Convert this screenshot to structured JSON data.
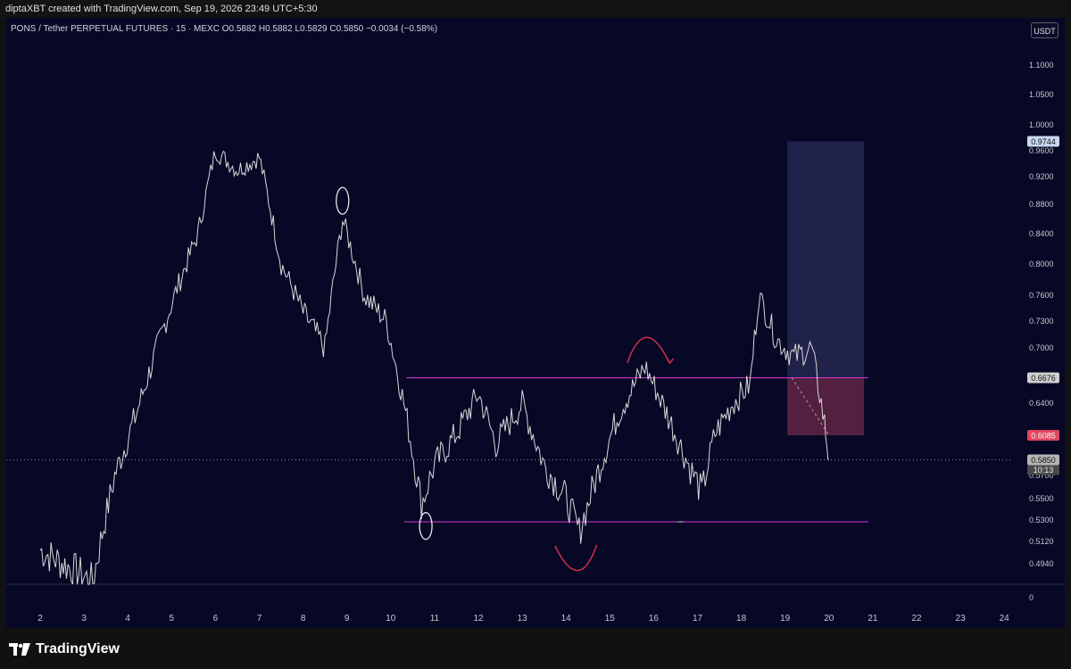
{
  "header": {
    "credit": "diptaXBT created with TradingView.com, Sep 19, 2026 23:49 UTC+5:30"
  },
  "legend": {
    "text": "PONS / Tether PERPETUAL FUTURES · 15 · MEXC  O0.5882  H0.5882  L0.5829  C0.5850  −0.0034 (−0.58%)"
  },
  "currency_button": "USDT",
  "footer": {
    "brand": "TradingView",
    "logo_icon": "tradingview-logo-icon"
  },
  "colors": {
    "background": "#070726",
    "price_line": "#d8d8d8",
    "level_line": "#d63ad6",
    "target_zone": "#2a2c55",
    "stop_zone": "#6e2a48",
    "annotation_red": "#d22f4a"
  },
  "chart_data": {
    "type": "line",
    "symbol": "PONS/USDT",
    "timeframe": "15",
    "exchange": "MEXC",
    "x_tick_labels": [
      "2",
      "3",
      "4",
      "5",
      "6",
      "7",
      "8",
      "9",
      "10",
      "11",
      "12",
      "13",
      "14",
      "15",
      "16",
      "17",
      "18",
      "19",
      "20",
      "21",
      "22",
      "23",
      "24"
    ],
    "y_tick_labels": [
      "1.1000",
      "1.0500",
      "1.0000",
      "0.9600",
      "0.9200",
      "0.8800",
      "0.8400",
      "0.8000",
      "0.7600",
      "0.7300",
      "0.7000",
      "0.6400",
      "0.5700",
      "0.5500",
      "0.5300",
      "0.5120",
      "0.4940",
      "0"
    ],
    "approx_close_by_day": {
      "x": [
        2.0,
        3.2,
        3.7,
        4.2,
        4.8,
        5.6,
        6.0,
        6.5,
        7.0,
        7.5,
        8.0,
        8.5,
        8.9,
        9.4,
        9.9,
        10.3,
        10.7,
        11.0,
        11.5,
        12.0,
        12.4,
        13.0,
        13.5,
        14.0,
        14.3,
        14.7,
        15.2,
        15.8,
        16.3,
        16.8,
        17.1,
        17.4,
        17.8,
        18.2,
        18.4,
        18.8,
        19.2,
        19.6,
        19.9,
        20.0
      ],
      "y": [
        0.505,
        0.48,
        0.57,
        0.63,
        0.72,
        0.84,
        0.96,
        0.93,
        0.95,
        0.8,
        0.74,
        0.7,
        0.86,
        0.76,
        0.73,
        0.64,
        0.545,
        0.58,
        0.61,
        0.65,
        0.6,
        0.64,
        0.58,
        0.55,
        0.52,
        0.57,
        0.63,
        0.68,
        0.63,
        0.58,
        0.555,
        0.61,
        0.64,
        0.66,
        0.76,
        0.71,
        0.69,
        0.7,
        0.62,
        0.585
      ]
    },
    "levels": [
      {
        "name": "resistance",
        "value": 0.6676,
        "from_x": 10.35,
        "to_x": 20.9
      },
      {
        "name": "support",
        "value": 0.5285,
        "from_x": 10.3,
        "to_x": 20.9
      }
    ],
    "position": {
      "type": "short",
      "entry": 0.6676,
      "stop": 0.9744,
      "target": 0.6085,
      "from_x": 19.05,
      "to_x": 20.8
    },
    "price_labels": [
      {
        "value": "0.9744",
        "kind": "stop"
      },
      {
        "value": "0.6676",
        "kind": "entry"
      },
      {
        "value": "0.6085",
        "kind": "target"
      },
      {
        "value": "0.5850",
        "kind": "last"
      }
    ],
    "countdown": "10:13"
  }
}
